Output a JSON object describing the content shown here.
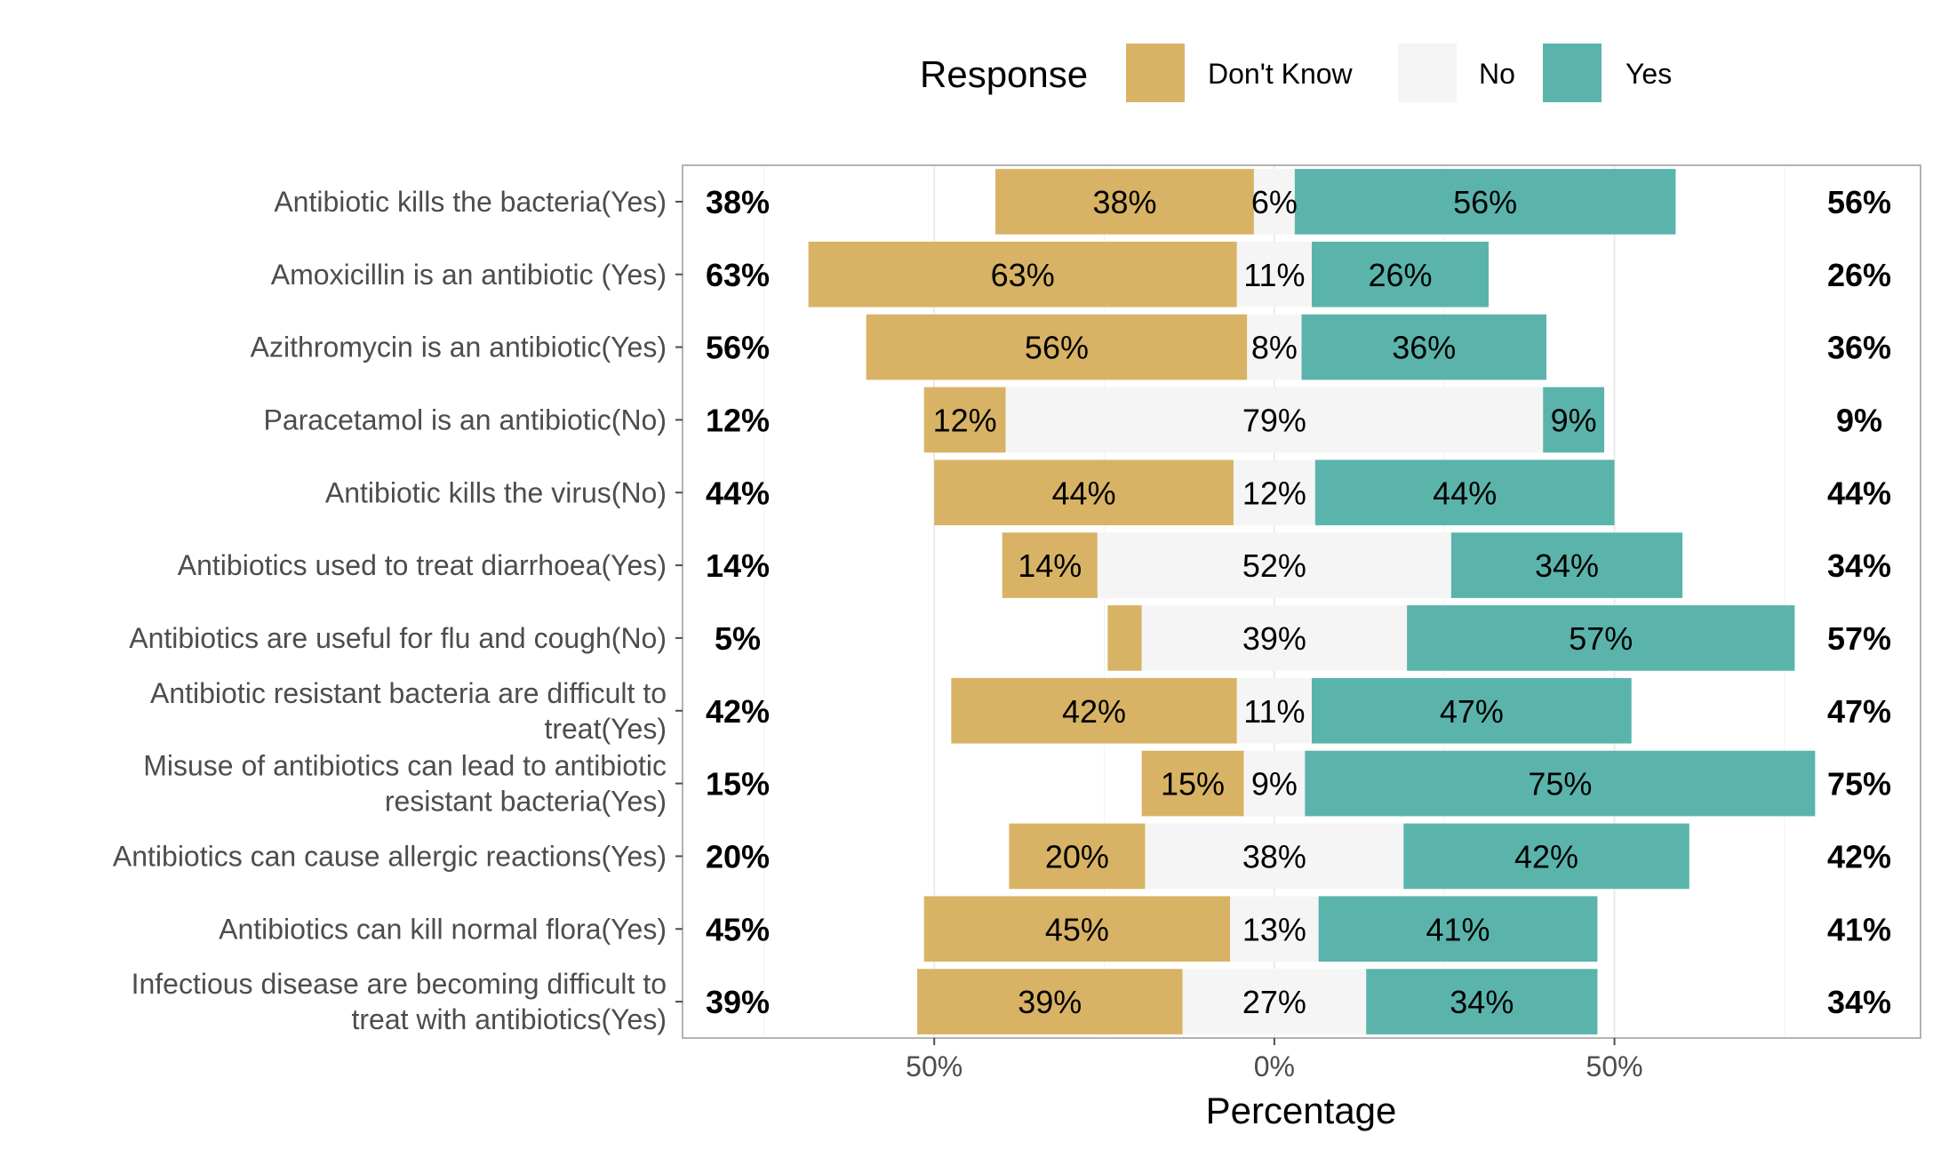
{
  "chart_data": {
    "type": "bar",
    "orientation": "horizontal",
    "stacking": "diverging",
    "xlabel": "Percentage",
    "x_ticks": [
      "50%",
      "0%",
      "50%"
    ],
    "x_tick_values": [
      -50,
      0,
      50
    ],
    "xlim": [
      -87,
      95
    ],
    "grid": true,
    "legend": {
      "title": "Response",
      "position": "top",
      "entries": [
        {
          "name": "Don't Know",
          "color": "#d8b365"
        },
        {
          "name": "No",
          "color": "#f5f5f5"
        },
        {
          "name": "Yes",
          "color": "#5ab4ac"
        }
      ]
    },
    "categories": [
      "Antibiotic kills the bacteria(Yes)",
      "Amoxicillin is an antibiotic (Yes)",
      "Azithromycin is an antibiotic(Yes)",
      "Paracetamol is an antibiotic(No)",
      "Antibiotic kills the virus(No)",
      "Antibiotics used to treat diarrhoea(Yes)",
      "Antibiotics are useful for flu and cough(No)",
      "Antibiotic resistant bacteria are difficult to treat(Yes)",
      "Misuse of antibiotics can lead to antibiotic resistant bacteria(Yes)",
      "Antibiotics can cause allergic reactions(Yes)",
      "Antibiotics can kill normal flora(Yes)",
      "Infectious disease are becoming difficult to treat with antibiotics(Yes)"
    ],
    "category_lines": [
      [
        "Antibiotic kills the bacteria(Yes)"
      ],
      [
        "Amoxicillin is an antibiotic (Yes)"
      ],
      [
        "Azithromycin is an antibiotic(Yes)"
      ],
      [
        "Paracetamol is an antibiotic(No)"
      ],
      [
        "Antibiotic kills the virus(No)"
      ],
      [
        "Antibiotics used to treat diarrhoea(Yes)"
      ],
      [
        "Antibiotics are useful for flu and cough(No)"
      ],
      [
        "Antibiotic resistant bacteria are difficult to",
        "treat(Yes)"
      ],
      [
        "Misuse of antibiotics can lead to antibiotic",
        "resistant bacteria(Yes)"
      ],
      [
        "Antibiotics can cause allergic reactions(Yes)"
      ],
      [
        "Antibiotics can kill normal flora(Yes)"
      ],
      [
        "Infectious disease are becoming difficult to",
        "treat with antibiotics(Yes)"
      ]
    ],
    "series": [
      {
        "name": "Don't Know",
        "values": [
          38,
          63,
          56,
          12,
          44,
          14,
          5,
          42,
          15,
          20,
          45,
          39
        ]
      },
      {
        "name": "No",
        "values": [
          6,
          11,
          8,
          79,
          12,
          52,
          39,
          11,
          9,
          38,
          13,
          27
        ]
      },
      {
        "name": "Yes",
        "values": [
          56,
          26,
          36,
          9,
          44,
          34,
          57,
          47,
          75,
          42,
          41,
          34
        ]
      }
    ],
    "bar_labels": {
      "dont_know": [
        "38%",
        "63%",
        "56%",
        "12%",
        "44%",
        "14%",
        "",
        "42%",
        "15%",
        "20%",
        "45%",
        "39%"
      ],
      "no": [
        "6%",
        "11%",
        "8%",
        "79%",
        "12%",
        "52%",
        "39%",
        "11%",
        "9%",
        "38%",
        "13%",
        "27%"
      ],
      "yes": [
        "56%",
        "26%",
        "36%",
        "9%",
        "44%",
        "34%",
        "57%",
        "47%",
        "75%",
        "42%",
        "41%",
        "34%"
      ]
    },
    "left_labels": [
      "38%",
      "63%",
      "56%",
      "12%",
      "44%",
      "14%",
      "5%",
      "42%",
      "15%",
      "20%",
      "45%",
      "39%"
    ],
    "right_labels": [
      "56%",
      "26%",
      "36%",
      "9%",
      "44%",
      "34%",
      "57%",
      "47%",
      "75%",
      "42%",
      "41%",
      "34%"
    ]
  }
}
